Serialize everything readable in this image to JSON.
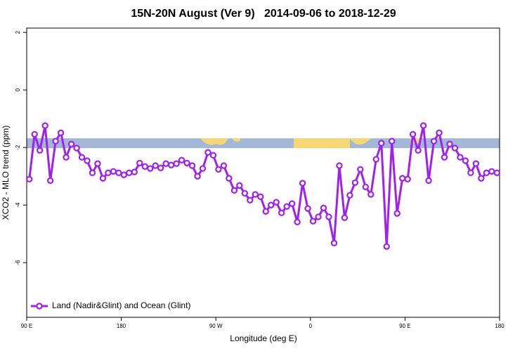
{
  "chart_data": {
    "type": "line",
    "title": "15N-20N August (Ver 9)   2014-09-06 to 2018-12-29",
    "x_label": "Longitude (deg E)",
    "y_label": "XCO2 - MLO trend (ppm)",
    "x": [
      92.5,
      97.5,
      102.5,
      107.5,
      112.5,
      117.5,
      122.5,
      127.5,
      132.5,
      137.5,
      142.5,
      147.5,
      152.5,
      157.5,
      162.5,
      167.5,
      172.5,
      177.5,
      182.5,
      187.5,
      192.5,
      197.5,
      202.5,
      207.5,
      212.5,
      217.5,
      222.5,
      227.5,
      232.5,
      237.5,
      242.5,
      247.5,
      252.5,
      257.5,
      262.5,
      267.5,
      272.5,
      277.5,
      282.5,
      287.5,
      292.5,
      297.5,
      302.5,
      307.5,
      312.5,
      317.5,
      322.5,
      327.5,
      332.5,
      337.5,
      342.5,
      347.5,
      352.5,
      357.5,
      362.5,
      367.5,
      372.5,
      377.5,
      382.5,
      387.5,
      392.5,
      397.5,
      402.5,
      407.5,
      412.5,
      417.5,
      422.5,
      427.5,
      432.5,
      437.5,
      442.5,
      447.5,
      452.5,
      457.5,
      462.5,
      467.5,
      472.5,
      477.5,
      482.5,
      487.5,
      492.5,
      497.5,
      502.5,
      507.5,
      512.5,
      517.5,
      522.5,
      527.5,
      532.5,
      537.5
    ],
    "series": [
      {
        "name": "Land (Nadir&Glint) and Ocean (Glint)",
        "color": "#a020f0",
        "values": [
          -3.1,
          -1.54,
          -2.1,
          -1.24,
          -3.15,
          -1.78,
          -1.49,
          -2.34,
          -1.88,
          -2.02,
          -2.34,
          -2.46,
          -2.88,
          -2.56,
          -3.07,
          -2.88,
          -2.83,
          -2.88,
          -2.95,
          -2.88,
          -2.85,
          -2.54,
          -2.66,
          -2.73,
          -2.63,
          -2.71,
          -2.56,
          -2.61,
          -2.56,
          -2.44,
          -2.54,
          -2.63,
          -3.0,
          -2.73,
          -2.17,
          -2.27,
          -2.76,
          -2.63,
          -3.07,
          -3.49,
          -3.32,
          -3.59,
          -3.83,
          -3.63,
          -3.71,
          -4.22,
          -4.0,
          -3.9,
          -4.27,
          -4.05,
          -3.95,
          -4.59,
          -3.24,
          -4.12,
          -4.56,
          -4.41,
          -4.1,
          -4.41,
          -5.32,
          -2.63,
          -4.44,
          -3.66,
          -3.22,
          -2.76,
          -3.37,
          -3.63,
          -2.41,
          -1.85,
          -5.44,
          -1.78,
          -4.29,
          -3.07,
          -3.1,
          -1.54,
          -2.1,
          -1.24,
          -3.15,
          -1.78,
          -1.49,
          -2.34,
          -1.88,
          -2.02,
          -2.34,
          -2.46,
          -2.88,
          -2.56,
          -3.07,
          -2.88,
          -2.83,
          -2.88
        ]
      }
    ],
    "xlim": [
      90,
      540
    ],
    "xticks": [
      {
        "value": 90,
        "label": "90 E"
      },
      180,
      {
        "value": 270,
        "label": "90 W"
      },
      {
        "value": 360,
        "label": "0"
      },
      {
        "value": 450,
        "label": "90 E"
      },
      {
        "value": 540,
        "label": "180"
      }
    ],
    "ylim": [
      -7.9,
      2.15
    ],
    "yticks": [
      2,
      0,
      -2,
      -4,
      -6
    ],
    "legend": "bottom-left"
  }
}
